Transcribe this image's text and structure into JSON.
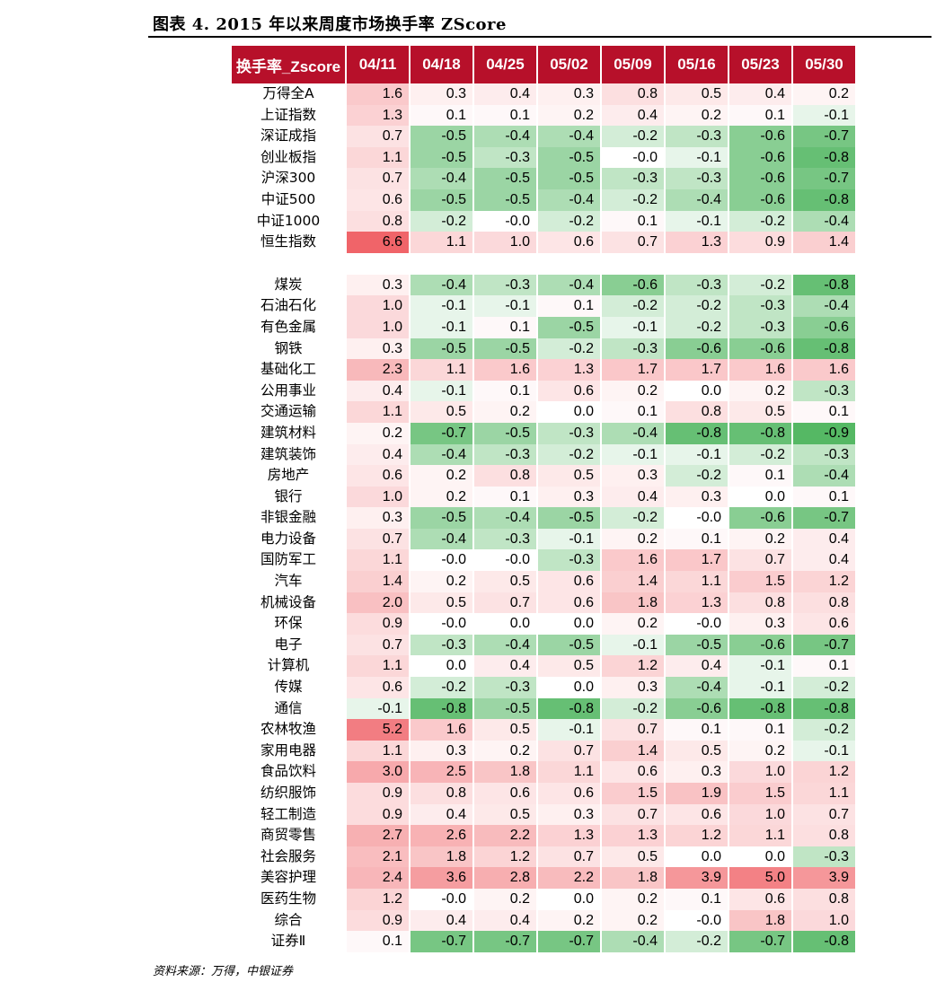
{
  "figure": {
    "title": "图表 4. 2015 年以来周度市场换手率 ZScore",
    "source": "资料来源：万得，中银证券"
  },
  "colors": {
    "header_bg": "#b7102a",
    "positive_max": "#f06469",
    "negative_max": "#55b864",
    "neutral": "#ffffff"
  },
  "chart_data": {
    "type": "heatmap",
    "title": "2015 年以来周度市场换手率 ZScore",
    "corner_label": "换手率_Zscore",
    "columns": [
      "04/11",
      "04/18",
      "04/25",
      "05/02",
      "05/09",
      "05/16",
      "05/23",
      "05/30"
    ],
    "groups": [
      {
        "name": "indices",
        "rows": [
          {
            "label": "万得全A",
            "values": [
              "1.6",
              "0.3",
              "0.4",
              "0.3",
              "0.8",
              "0.5",
              "0.4",
              "0.2"
            ]
          },
          {
            "label": "上证指数",
            "values": [
              "1.3",
              "0.1",
              "0.1",
              "0.2",
              "0.4",
              "0.2",
              "0.1",
              "-0.1"
            ]
          },
          {
            "label": "深证成指",
            "values": [
              "0.7",
              "-0.5",
              "-0.4",
              "-0.4",
              "-0.2",
              "-0.3",
              "-0.6",
              "-0.7"
            ]
          },
          {
            "label": "创业板指",
            "values": [
              "1.1",
              "-0.5",
              "-0.3",
              "-0.5",
              "-0.0",
              "-0.1",
              "-0.6",
              "-0.8"
            ]
          },
          {
            "label": "沪深300",
            "values": [
              "0.7",
              "-0.4",
              "-0.5",
              "-0.5",
              "-0.3",
              "-0.3",
              "-0.6",
              "-0.7"
            ]
          },
          {
            "label": "中证500",
            "values": [
              "0.6",
              "-0.5",
              "-0.5",
              "-0.4",
              "-0.2",
              "-0.4",
              "-0.6",
              "-0.8"
            ]
          },
          {
            "label": "中证1000",
            "values": [
              "0.8",
              "-0.2",
              "-0.0",
              "-0.2",
              "0.1",
              "-0.1",
              "-0.2",
              "-0.4"
            ]
          },
          {
            "label": "恒生指数",
            "values": [
              "6.6",
              "1.1",
              "1.0",
              "0.6",
              "0.7",
              "1.3",
              "0.9",
              "1.4"
            ]
          }
        ]
      },
      {
        "name": "industries",
        "rows": [
          {
            "label": "煤炭",
            "values": [
              "0.3",
              "-0.4",
              "-0.3",
              "-0.4",
              "-0.6",
              "-0.3",
              "-0.2",
              "-0.8"
            ]
          },
          {
            "label": "石油石化",
            "values": [
              "1.0",
              "-0.1",
              "-0.1",
              "0.1",
              "-0.2",
              "-0.2",
              "-0.3",
              "-0.4"
            ]
          },
          {
            "label": "有色金属",
            "values": [
              "1.0",
              "-0.1",
              "0.1",
              "-0.5",
              "-0.1",
              "-0.2",
              "-0.3",
              "-0.6"
            ]
          },
          {
            "label": "钢铁",
            "values": [
              "0.3",
              "-0.5",
              "-0.5",
              "-0.2",
              "-0.3",
              "-0.6",
              "-0.6",
              "-0.8"
            ]
          },
          {
            "label": "基础化工",
            "values": [
              "2.3",
              "1.1",
              "1.6",
              "1.3",
              "1.7",
              "1.7",
              "1.6",
              "1.6"
            ]
          },
          {
            "label": "公用事业",
            "values": [
              "0.4",
              "-0.1",
              "0.1",
              "0.6",
              "0.2",
              "0.0",
              "0.2",
              "-0.3"
            ]
          },
          {
            "label": "交通运输",
            "values": [
              "1.1",
              "0.5",
              "0.2",
              "0.0",
              "0.1",
              "0.8",
              "0.5",
              "0.1"
            ]
          },
          {
            "label": "建筑材料",
            "values": [
              "0.2",
              "-0.7",
              "-0.5",
              "-0.3",
              "-0.4",
              "-0.8",
              "-0.8",
              "-0.9"
            ]
          },
          {
            "label": "建筑装饰",
            "values": [
              "0.4",
              "-0.4",
              "-0.3",
              "-0.2",
              "-0.1",
              "-0.1",
              "-0.2",
              "-0.3"
            ]
          },
          {
            "label": "房地产",
            "values": [
              "0.6",
              "0.2",
              "0.8",
              "0.5",
              "0.3",
              "-0.2",
              "0.1",
              "-0.4"
            ]
          },
          {
            "label": "银行",
            "values": [
              "1.0",
              "0.2",
              "0.1",
              "0.3",
              "0.4",
              "0.3",
              "0.0",
              "0.1"
            ]
          },
          {
            "label": "非银金融",
            "values": [
              "0.3",
              "-0.5",
              "-0.4",
              "-0.5",
              "-0.2",
              "-0.0",
              "-0.6",
              "-0.7"
            ]
          },
          {
            "label": "电力设备",
            "values": [
              "0.7",
              "-0.4",
              "-0.3",
              "-0.1",
              "0.2",
              "0.1",
              "0.2",
              "0.4"
            ]
          },
          {
            "label": "国防军工",
            "values": [
              "1.1",
              "-0.0",
              "-0.0",
              "-0.3",
              "1.6",
              "1.7",
              "0.7",
              "0.4"
            ]
          },
          {
            "label": "汽车",
            "values": [
              "1.4",
              "0.2",
              "0.5",
              "0.6",
              "1.4",
              "1.1",
              "1.5",
              "1.2"
            ]
          },
          {
            "label": "机械设备",
            "values": [
              "2.0",
              "0.5",
              "0.7",
              "0.6",
              "1.8",
              "1.3",
              "0.8",
              "0.8"
            ]
          },
          {
            "label": "环保",
            "values": [
              "0.9",
              "-0.0",
              "0.0",
              "0.0",
              "0.2",
              "-0.0",
              "0.3",
              "0.6"
            ]
          },
          {
            "label": "电子",
            "values": [
              "0.7",
              "-0.3",
              "-0.4",
              "-0.5",
              "-0.1",
              "-0.5",
              "-0.6",
              "-0.7"
            ]
          },
          {
            "label": "计算机",
            "values": [
              "1.1",
              "0.0",
              "0.4",
              "0.5",
              "1.2",
              "0.4",
              "-0.1",
              "0.1"
            ]
          },
          {
            "label": "传媒",
            "values": [
              "0.6",
              "-0.2",
              "-0.3",
              "0.0",
              "0.3",
              "-0.4",
              "-0.1",
              "-0.2"
            ]
          },
          {
            "label": "通信",
            "values": [
              "-0.1",
              "-0.8",
              "-0.5",
              "-0.8",
              "-0.2",
              "-0.6",
              "-0.8",
              "-0.8"
            ]
          },
          {
            "label": "农林牧渔",
            "values": [
              "5.2",
              "1.6",
              "0.5",
              "-0.1",
              "0.7",
              "0.1",
              "0.1",
              "-0.2"
            ]
          },
          {
            "label": "家用电器",
            "values": [
              "1.1",
              "0.3",
              "0.2",
              "0.7",
              "1.4",
              "0.5",
              "0.2",
              "-0.1"
            ]
          },
          {
            "label": "食品饮料",
            "values": [
              "3.0",
              "2.5",
              "1.8",
              "1.1",
              "0.6",
              "0.3",
              "1.0",
              "1.2"
            ]
          },
          {
            "label": "纺织服饰",
            "values": [
              "0.9",
              "0.8",
              "0.6",
              "0.6",
              "1.5",
              "1.9",
              "1.5",
              "1.1"
            ]
          },
          {
            "label": "轻工制造",
            "values": [
              "0.9",
              "0.4",
              "0.5",
              "0.3",
              "0.7",
              "0.6",
              "1.0",
              "0.7"
            ]
          },
          {
            "label": "商贸零售",
            "values": [
              "2.7",
              "2.6",
              "2.2",
              "1.3",
              "1.3",
              "1.2",
              "1.1",
              "0.8"
            ]
          },
          {
            "label": "社会服务",
            "values": [
              "2.1",
              "1.8",
              "1.2",
              "0.7",
              "0.5",
              "0.0",
              "0.0",
              "-0.3"
            ]
          },
          {
            "label": "美容护理",
            "values": [
              "2.4",
              "3.6",
              "2.8",
              "2.2",
              "1.8",
              "3.9",
              "5.0",
              "3.9"
            ]
          },
          {
            "label": "医药生物",
            "values": [
              "1.2",
              "-0.0",
              "0.2",
              "0.0",
              "0.2",
              "0.1",
              "0.6",
              "0.8"
            ]
          },
          {
            "label": "综合",
            "values": [
              "0.9",
              "0.4",
              "0.4",
              "0.2",
              "0.2",
              "-0.0",
              "1.8",
              "1.0"
            ]
          },
          {
            "label": "证券Ⅱ",
            "values": [
              "0.1",
              "-0.7",
              "-0.7",
              "-0.7",
              "-0.4",
              "-0.2",
              "-0.7",
              "-0.8"
            ]
          }
        ]
      }
    ]
  }
}
